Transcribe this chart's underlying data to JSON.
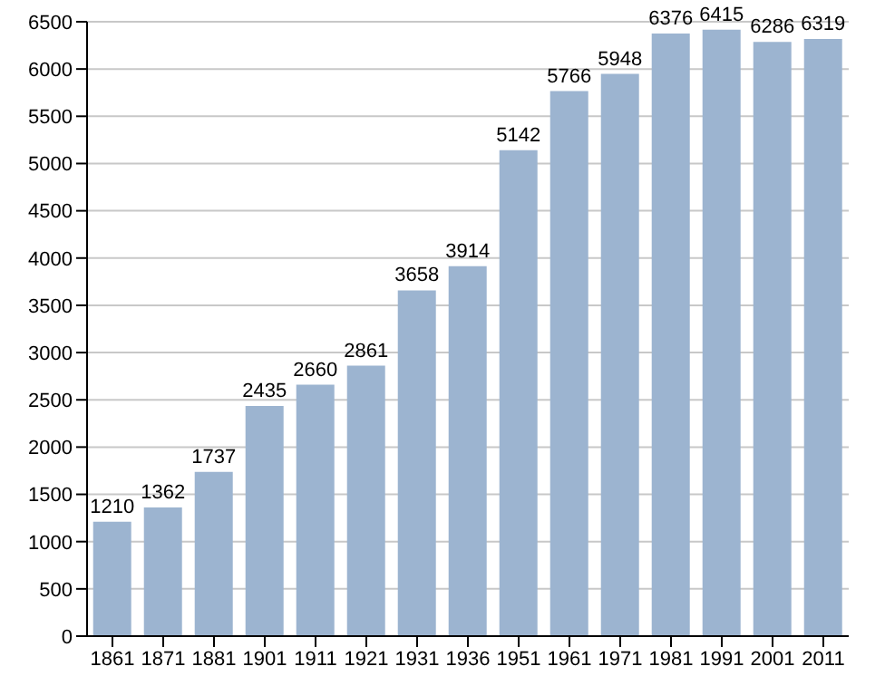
{
  "chart_data": {
    "type": "bar",
    "categories": [
      "1861",
      "1871",
      "1881",
      "1901",
      "1911",
      "1921",
      "1931",
      "1936",
      "1951",
      "1961",
      "1971",
      "1981",
      "1991",
      "2001",
      "2011"
    ],
    "values": [
      1210,
      1362,
      1737,
      2435,
      2660,
      2861,
      3658,
      3914,
      5142,
      5766,
      5948,
      6376,
      6415,
      6286,
      6319
    ],
    "color": "#9cb4d0",
    "ylim": [
      0,
      6500
    ],
    "yticks": [
      0,
      500,
      1000,
      1500,
      2000,
      2500,
      3000,
      3500,
      4000,
      4500,
      5000,
      5500,
      6000,
      6500
    ],
    "grid": "y",
    "data_labels": true
  }
}
